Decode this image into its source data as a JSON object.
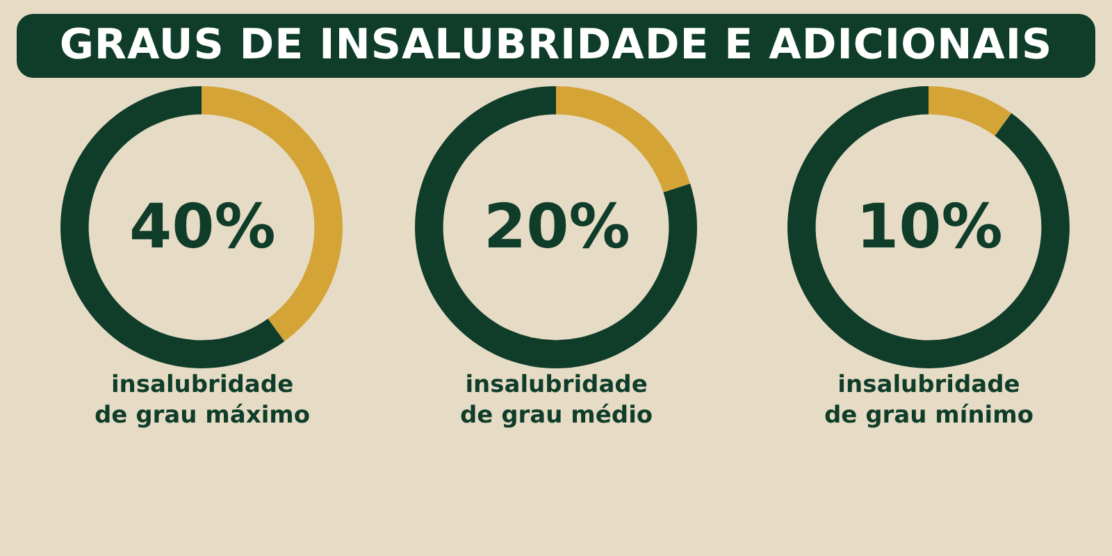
{
  "chart_data": [
    {
      "type": "donut",
      "title": "GRAUS DE INSALUBRIDADE E ADICIONAIS",
      "subtitle": "insalubridade\nde grau máximo",
      "categories": [
        null,
        null
      ],
      "values": [
        40,
        60
      ],
      "colors": [
        "#d4a437",
        "#0f3d2a"
      ],
      "annotations": [
        "40%"
      ]
    },
    {
      "type": "donut",
      "subtitle": "insalubridade\nde grau médio",
      "categories": [
        null,
        null
      ],
      "values": [
        20,
        80
      ],
      "colors": [
        "#d4a437",
        "#0f3d2a"
      ],
      "annotations": [
        "20%"
      ]
    },
    {
      "type": "donut",
      "subtitle": "insalubridade\nde grau mínimo",
      "categories": [
        null,
        null
      ],
      "values": [
        10,
        90
      ],
      "colors": [
        "#d4a437",
        "#0f3d2a"
      ],
      "annotations": [
        "10%"
      ]
    }
  ]
}
